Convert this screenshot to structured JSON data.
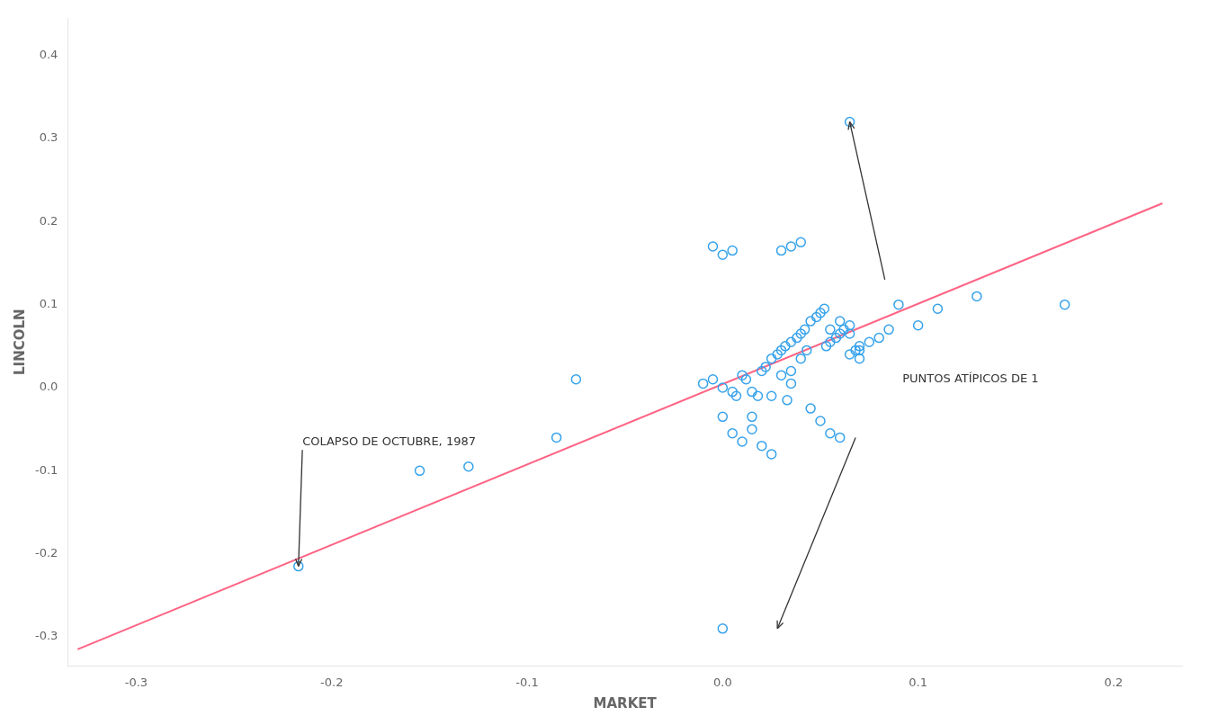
{
  "chart_data": {
    "type": "scatter",
    "xlabel": "MARKET",
    "ylabel": "LINCOLN",
    "series": [
      {
        "type": "scatter",
        "marker": "circle",
        "x": [
          -0.217,
          -0.13,
          -0.155,
          -0.085,
          -0.075,
          -0.01,
          0.0,
          0.005,
          -0.005,
          0.007,
          0.01,
          0.012,
          0.015,
          0.018,
          0.02,
          0.022,
          0.025,
          0.028,
          0.03,
          0.03,
          0.032,
          0.033,
          0.035,
          0.035,
          0.038,
          0.04,
          0.04,
          0.042,
          0.043,
          0.045,
          0.045,
          0.048,
          0.05,
          0.05,
          0.052,
          0.053,
          0.055,
          0.055,
          0.058,
          0.06,
          0.06,
          0.062,
          0.065,
          0.065,
          0.068,
          0.07,
          0.07,
          0.075,
          0.08,
          0.085,
          0.09,
          0.1,
          0.11,
          0.13,
          -0.005,
          0.0,
          0.005,
          0.03,
          0.035,
          0.04,
          0.055,
          0.06,
          0.065,
          0.07,
          0.065,
          0.175,
          0.0,
          0.015,
          0.025,
          0.035,
          0.0,
          0.005,
          0.01,
          0.015,
          0.02,
          0.025
        ],
        "values": [
          -0.215,
          -0.095,
          -0.1,
          -0.06,
          0.01,
          0.005,
          0.0,
          -0.005,
          0.01,
          -0.01,
          0.015,
          0.01,
          -0.005,
          -0.01,
          0.02,
          0.025,
          0.035,
          0.04,
          0.045,
          0.015,
          0.05,
          -0.015,
          0.055,
          0.02,
          0.06,
          0.065,
          0.035,
          0.07,
          0.045,
          -0.025,
          0.08,
          0.085,
          -0.04,
          0.09,
          0.095,
          0.05,
          0.055,
          -0.055,
          0.06,
          -0.06,
          0.065,
          0.07,
          0.075,
          0.04,
          0.045,
          0.035,
          0.05,
          0.055,
          0.06,
          0.07,
          0.1,
          0.075,
          0.095,
          0.11,
          0.17,
          0.16,
          0.165,
          0.165,
          0.17,
          0.175,
          0.07,
          0.08,
          0.065,
          0.045,
          0.32,
          0.1,
          -0.29,
          -0.035,
          -0.01,
          0.005,
          -0.035,
          -0.055,
          -0.065,
          -0.05,
          -0.07,
          -0.08
        ]
      },
      {
        "type": "line",
        "line_style": "solid",
        "x": [
          -0.33,
          0.225
        ],
        "values": [
          -0.315,
          0.222
        ]
      }
    ],
    "xlim": [
      -0.335,
      0.235
    ],
    "ylim": [
      -0.335,
      0.445
    ],
    "xticks": [
      -0.3,
      -0.2,
      -0.1,
      {
        "value": 0.0,
        "label": "0.0"
      },
      0.1,
      0.2
    ],
    "yticks": [
      -0.3,
      -0.2,
      -0.1,
      {
        "value": 0.0,
        "label": "0.0"
      },
      0.1,
      0.2,
      0.3,
      0.4
    ],
    "grid": false,
    "annotations": [
      {
        "text": "COLAPSO DE OCTUBRE, 1987",
        "x": -0.215,
        "y": -0.075,
        "arrow_to": [
          -0.217,
          -0.215
        ]
      },
      {
        "text": "PUNTOS ATÍPICOS DE 1",
        "x": 0.092,
        "y": 0.01,
        "arrows": [
          {
            "from": [
              0.083,
              0.13
            ],
            "to": [
              0.065,
              0.32
            ]
          },
          {
            "from": [
              0.068,
              -0.06
            ],
            "to": [
              0.028,
              -0.29
            ]
          }
        ]
      }
    ]
  }
}
